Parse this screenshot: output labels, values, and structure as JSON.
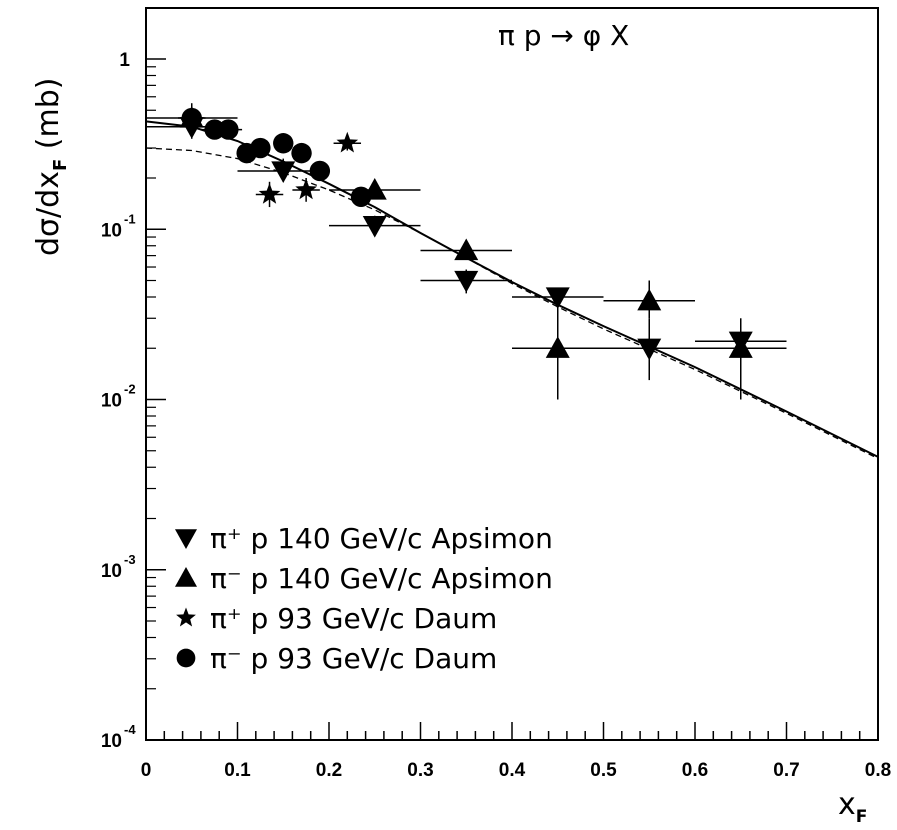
{
  "chart_data": {
    "type": "scatter",
    "title": "",
    "reaction_label": "π p → φ X",
    "xlabel": "x",
    "xlabel_subscript": "F",
    "ylabel": "dσ/dx",
    "ylabel_subscript": "F",
    "ylabel_unit": "(mb)",
    "xlim": [
      0,
      0.8
    ],
    "ylim": [
      0.0001,
      2
    ],
    "y_scale": "log",
    "x_ticks": [
      "0",
      "0.1",
      "0.2",
      "0.3",
      "0.4",
      "0.5",
      "0.6",
      "0.7",
      "0.8"
    ],
    "y_ticks": [
      {
        "value": 1,
        "base": "1",
        "exp": ""
      },
      {
        "value": 0.1,
        "base": "10",
        "exp": "-1"
      },
      {
        "value": 0.01,
        "base": "10",
        "exp": "-2"
      },
      {
        "value": 0.001,
        "base": "10",
        "exp": "-3"
      },
      {
        "value": 0.0001,
        "base": "10",
        "exp": "-4"
      }
    ],
    "grid": false,
    "legend_position": "bottom-left",
    "series": [
      {
        "name": "π⁺ p 140 GeV/c Apsimon",
        "marker": "triangle-down",
        "points": [
          {
            "x": 0.05,
            "y": 0.4,
            "xerr": 0.05,
            "ylo": 0.34,
            "yhi": 0.47
          },
          {
            "x": 0.15,
            "y": 0.22,
            "xerr": 0.05,
            "ylo": 0.19,
            "yhi": 0.26
          },
          {
            "x": 0.25,
            "y": 0.105,
            "xerr": 0.05,
            "ylo": 0.095,
            "yhi": 0.12
          },
          {
            "x": 0.35,
            "y": 0.05,
            "xerr": 0.05,
            "ylo": 0.042,
            "yhi": 0.058
          },
          {
            "x": 0.45,
            "y": 0.04,
            "xerr": 0.05,
            "ylo": 0.012,
            "yhi": 0.045
          },
          {
            "x": 0.55,
            "y": 0.02,
            "xerr": 0.05,
            "ylo": 0.013,
            "yhi": 0.03
          },
          {
            "x": 0.65,
            "y": 0.022,
            "xerr": 0.05,
            "ylo": 0.016,
            "yhi": 0.03
          }
        ]
      },
      {
        "name": "π⁻ p 140 GeV/c Apsimon",
        "marker": "triangle-up",
        "points": [
          {
            "x": 0.05,
            "y": 0.45,
            "xerr": 0.05,
            "ylo": 0.4,
            "yhi": 0.55
          },
          {
            "x": 0.25,
            "y": 0.17,
            "xerr": 0.05,
            "ylo": 0.15,
            "yhi": 0.19
          },
          {
            "x": 0.35,
            "y": 0.075,
            "xerr": 0.05,
            "ylo": 0.068,
            "yhi": 0.082
          },
          {
            "x": 0.45,
            "y": 0.02,
            "xerr": 0.05,
            "ylo": 0.01,
            "yhi": 0.04
          },
          {
            "x": 0.55,
            "y": 0.038,
            "xerr": 0.05,
            "ylo": 0.03,
            "yhi": 0.05
          },
          {
            "x": 0.65,
            "y": 0.02,
            "xerr": 0.05,
            "ylo": 0.01,
            "yhi": 0.025
          }
        ]
      },
      {
        "name": "π⁺ p 93 GeV/c Daum",
        "marker": "star",
        "points": [
          {
            "x": 0.135,
            "y": 0.16,
            "xerr": 0.015,
            "ylo": 0.135,
            "yhi": 0.19
          },
          {
            "x": 0.175,
            "y": 0.17,
            "xerr": 0.015,
            "ylo": 0.145,
            "yhi": 0.2
          },
          {
            "x": 0.22,
            "y": 0.32,
            "xerr": 0.015,
            "ylo": 0.29,
            "yhi": 0.35
          }
        ]
      },
      {
        "name": "π⁻ p 93 GeV/c Daum",
        "marker": "circle",
        "points": [
          {
            "x": 0.05,
            "y": 0.45,
            "xerr": 0.015,
            "ylo": 0.42,
            "yhi": 0.48
          },
          {
            "x": 0.075,
            "y": 0.385,
            "xerr": 0.015,
            "ylo": 0.36,
            "yhi": 0.41
          },
          {
            "x": 0.09,
            "y": 0.385,
            "xerr": 0.015,
            "ylo": 0.36,
            "yhi": 0.41
          },
          {
            "x": 0.11,
            "y": 0.28,
            "xerr": 0.01,
            "ylo": 0.26,
            "yhi": 0.3
          },
          {
            "x": 0.125,
            "y": 0.3,
            "xerr": 0.01,
            "ylo": 0.28,
            "yhi": 0.32
          },
          {
            "x": 0.15,
            "y": 0.32,
            "xerr": 0.01,
            "ylo": 0.3,
            "yhi": 0.34
          },
          {
            "x": 0.17,
            "y": 0.28,
            "xerr": 0.01,
            "ylo": 0.26,
            "yhi": 0.3
          },
          {
            "x": 0.19,
            "y": 0.22,
            "xerr": 0.01,
            "ylo": 0.2,
            "yhi": 0.24
          },
          {
            "x": 0.235,
            "y": 0.155,
            "xerr": 0.01,
            "ylo": 0.14,
            "yhi": 0.17
          }
        ]
      }
    ],
    "curves": [
      {
        "style": "solid",
        "points": [
          [
            0,
            0.43
          ],
          [
            0.05,
            0.4
          ],
          [
            0.1,
            0.33
          ],
          [
            0.15,
            0.25
          ],
          [
            0.2,
            0.185
          ],
          [
            0.25,
            0.135
          ],
          [
            0.3,
            0.095
          ],
          [
            0.35,
            0.068
          ],
          [
            0.4,
            0.049
          ],
          [
            0.45,
            0.036
          ],
          [
            0.5,
            0.027
          ],
          [
            0.6,
            0.0155
          ],
          [
            0.7,
            0.0085
          ],
          [
            0.8,
            0.0046
          ]
        ]
      },
      {
        "style": "dashed",
        "points": [
          [
            0,
            0.3
          ],
          [
            0.05,
            0.29
          ],
          [
            0.1,
            0.26
          ],
          [
            0.15,
            0.215
          ],
          [
            0.2,
            0.17
          ],
          [
            0.25,
            0.13
          ],
          [
            0.3,
            0.095
          ],
          [
            0.35,
            0.068
          ],
          [
            0.4,
            0.048
          ],
          [
            0.45,
            0.035
          ],
          [
            0.5,
            0.026
          ],
          [
            0.6,
            0.015
          ],
          [
            0.7,
            0.0083
          ],
          [
            0.8,
            0.0045
          ]
        ]
      }
    ]
  }
}
